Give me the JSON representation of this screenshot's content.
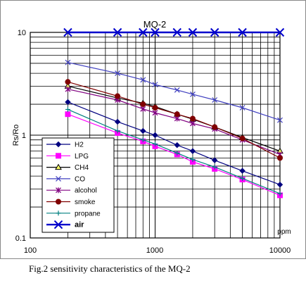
{
  "chart_data": {
    "type": "line",
    "title": "MQ-2",
    "xlabel": "ppm",
    "ylabel": "Rs/Ro",
    "x_scale": "log",
    "y_scale": "log",
    "xlim": [
      100,
      10000
    ],
    "ylim": [
      0.1,
      10
    ],
    "x_ticks": [
      "100",
      "1000",
      "10000"
    ],
    "y_ticks": [
      "0.1",
      "1",
      "10"
    ],
    "grid": true,
    "legend_position": "bottom-left",
    "x": [
      200,
      500,
      800,
      1000,
      1500,
      2000,
      3000,
      5000,
      10000
    ],
    "series": [
      {
        "name": "H2",
        "color": "#000080",
        "marker": "diamond",
        "values": [
          2.1,
          1.35,
          1.1,
          1.0,
          0.8,
          0.7,
          0.57,
          0.45,
          0.33
        ]
      },
      {
        "name": "LPG",
        "color": "#ff00ff",
        "marker": "square",
        "values": [
          1.6,
          1.05,
          0.87,
          0.78,
          0.65,
          0.55,
          0.47,
          0.37,
          0.26
        ]
      },
      {
        "name": "CH4",
        "color": "#000000",
        "marker": "triangle",
        "values": [
          3.0,
          2.3,
          2.05,
          1.9,
          1.6,
          1.43,
          1.2,
          0.95,
          0.7
        ]
      },
      {
        "name": "CO",
        "color": "#4040c0",
        "marker": "x",
        "values": [
          5.1,
          4.0,
          3.45,
          3.1,
          2.75,
          2.5,
          2.2,
          1.85,
          1.4
        ]
      },
      {
        "name": "alcohol",
        "color": "#800080",
        "marker": "star",
        "values": [
          2.8,
          2.2,
          1.8,
          1.65,
          1.45,
          1.3,
          1.15,
          0.9,
          0.65
        ]
      },
      {
        "name": "smoke",
        "color": "#800000",
        "marker": "circle",
        "values": [
          3.3,
          2.4,
          2.0,
          1.85,
          1.6,
          1.45,
          1.2,
          0.93,
          0.6
        ]
      },
      {
        "name": "propane",
        "color": "#008080",
        "marker": "plus",
        "values": [
          1.78,
          1.1,
          0.9,
          0.82,
          0.67,
          0.58,
          0.49,
          0.38,
          0.27
        ]
      },
      {
        "name": "air",
        "color": "#0000cc",
        "marker": "x-large",
        "values": [
          10,
          10,
          10,
          10,
          10,
          10,
          10,
          10,
          10
        ]
      }
    ]
  },
  "caption": "Fig.2 sensitivity characteristics of the MQ-2"
}
